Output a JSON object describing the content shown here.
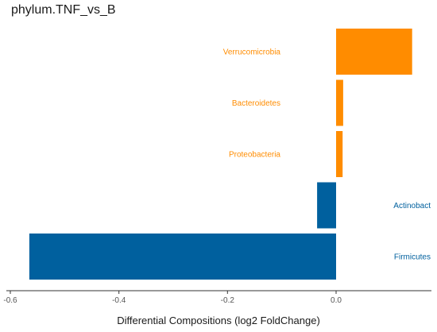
{
  "chart_data": {
    "type": "bar",
    "orientation": "horizontal",
    "title": "phylum.TNF_vs_B",
    "xlabel": "Differential Compositions (log2 FoldChange)",
    "ylabel": "",
    "xlim": [
      -0.6,
      0.18
    ],
    "x_ticks": [
      -0.6,
      -0.4,
      -0.2,
      0.0
    ],
    "x_tick_labels": [
      "-0.6",
      "-0.4",
      "-0.2",
      "0.0"
    ],
    "grid": false,
    "legend": "none",
    "categories": [
      "Verrucomicrobia",
      "Bacteroidetes",
      "Proteobacteria",
      "Actinobact",
      "Firmicutes"
    ],
    "values": [
      0.14,
      0.013,
      0.012,
      -0.035,
      -0.565
    ],
    "colors": {
      "positive": "#FF8C00",
      "negative": "#00609E",
      "axis": "#333333",
      "tick_text": "#555555"
    }
  }
}
